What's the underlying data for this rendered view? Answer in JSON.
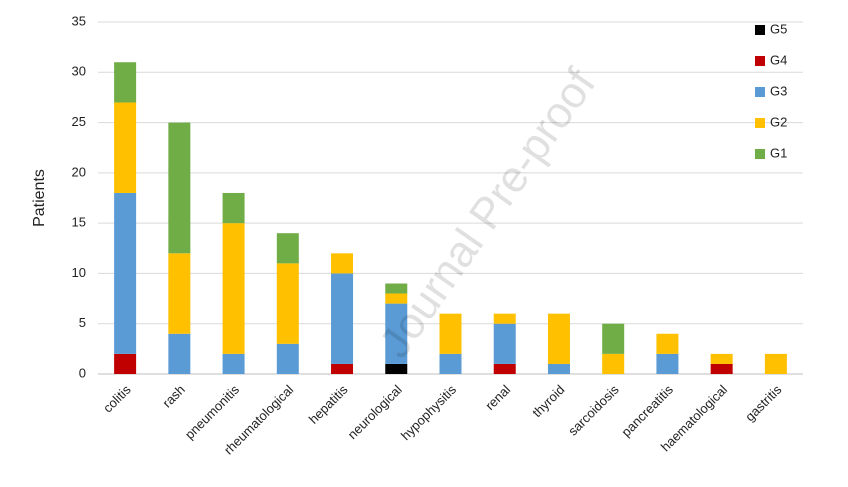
{
  "chart_data": {
    "type": "stacked_bar",
    "y_label": "Patients",
    "watermark": "Journal Pre-proof",
    "categories": [
      "colitis",
      "rash",
      "pneumonitis",
      "rheumatological",
      "hepatitis",
      "neurological",
      "hypophysitis",
      "renal",
      "thyroid",
      "sarcoidosis",
      "pancreatitis",
      "haematological",
      "gastritis"
    ],
    "series": [
      {
        "name": "G5",
        "color": "#000000",
        "values": [
          0,
          0,
          0,
          0,
          0,
          1,
          0,
          0,
          0,
          0,
          0,
          0,
          0
        ]
      },
      {
        "name": "G4",
        "color": "#c00000",
        "values": [
          2,
          0,
          0,
          0,
          1,
          0,
          0,
          1,
          0,
          0,
          0,
          1,
          0
        ]
      },
      {
        "name": "G3",
        "color": "#5b9bd5",
        "values": [
          16,
          4,
          2,
          3,
          9,
          6,
          2,
          4,
          1,
          0,
          2,
          0,
          0
        ]
      },
      {
        "name": "G2",
        "color": "#ffc000",
        "values": [
          9,
          8,
          13,
          8,
          2,
          1,
          4,
          1,
          5,
          2,
          2,
          1,
          2
        ]
      },
      {
        "name": "G1",
        "color": "#70ad47",
        "values": [
          4,
          13,
          3,
          3,
          0,
          1,
          0,
          0,
          0,
          3,
          0,
          0,
          0
        ]
      }
    ],
    "ylim": [
      0,
      35
    ],
    "yticks": [
      0,
      5,
      10,
      15,
      20,
      25,
      30,
      35
    ],
    "grid": true,
    "legend": "top-right"
  }
}
